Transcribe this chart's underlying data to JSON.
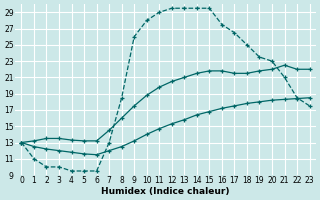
{
  "title": "",
  "xlabel": "Humidex (Indice chaleur)",
  "bg_color": "#cce8e8",
  "grid_color": "#ffffff",
  "line_color": "#006666",
  "xlim": [
    -0.5,
    23.5
  ],
  "ylim": [
    9,
    30
  ],
  "xticks": [
    0,
    1,
    2,
    3,
    4,
    5,
    6,
    7,
    8,
    9,
    10,
    11,
    12,
    13,
    14,
    15,
    16,
    17,
    18,
    19,
    20,
    21,
    22,
    23
  ],
  "yticks": [
    9,
    11,
    13,
    15,
    17,
    19,
    21,
    23,
    25,
    27,
    29
  ],
  "line1_x": [
    0,
    1,
    2,
    3,
    4,
    5,
    6,
    7,
    8,
    9,
    10,
    11,
    12,
    13,
    14,
    15,
    16,
    17,
    18,
    19,
    20,
    21,
    22,
    23
  ],
  "line1_y": [
    13,
    11,
    10,
    10,
    9.5,
    9.5,
    9.5,
    13,
    18.5,
    26,
    28,
    29,
    29.5,
    29.5,
    29.5,
    29.5,
    27.5,
    26.5,
    25,
    23.5,
    23,
    21,
    18.5,
    17.5
  ],
  "line2_x": [
    0,
    1,
    2,
    3,
    4,
    5,
    6,
    7,
    8,
    9,
    10,
    11,
    12,
    13,
    14,
    15,
    16,
    17,
    18,
    19,
    20,
    21,
    22,
    23
  ],
  "line2_y": [
    13,
    12.5,
    12.2,
    12.0,
    11.8,
    11.6,
    11.5,
    12.0,
    12.5,
    13.2,
    14.0,
    14.7,
    15.3,
    15.8,
    16.4,
    16.8,
    17.2,
    17.5,
    17.8,
    18.0,
    18.2,
    18.3,
    18.4,
    18.5
  ],
  "line3_x": [
    0,
    1,
    2,
    3,
    4,
    5,
    6,
    7,
    8,
    9,
    10,
    11,
    12,
    13,
    14,
    15,
    16,
    17,
    18,
    19,
    20,
    21,
    22,
    23
  ],
  "line3_y": [
    13,
    13.2,
    13.5,
    13.5,
    13.3,
    13.2,
    13.2,
    14.5,
    16.0,
    17.5,
    18.8,
    19.8,
    20.5,
    21.0,
    21.5,
    21.8,
    21.8,
    21.5,
    21.5,
    21.8,
    22.0,
    22.5,
    22.0,
    22.0
  ],
  "tick_fontsize": 5.5,
  "xlabel_fontsize": 6.5
}
